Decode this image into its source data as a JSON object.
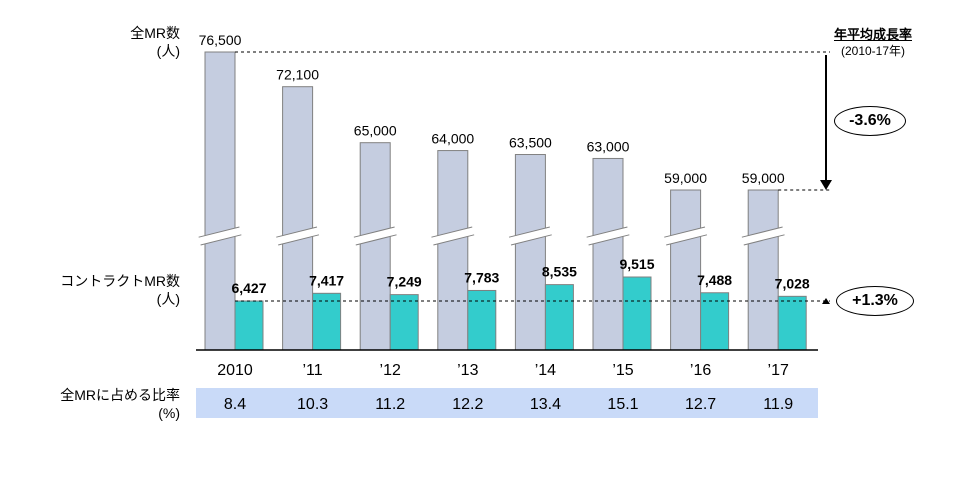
{
  "labels": {
    "total_axis_label": "全MR数\n(人)",
    "contract_axis_label": "コントラクトMR数\n(人)",
    "ratio_row_label": "全MRに占める比率\n(%)",
    "cagr_title": "年平均成長率",
    "cagr_period": "(2010-17年)",
    "cagr_total": "-3.6%",
    "cagr_contract": "+1.3%"
  },
  "chart_data": {
    "type": "bar",
    "title": "",
    "xlabel": "",
    "ylabel": "",
    "categories": [
      "2010",
      "’11",
      "’12",
      "’13",
      "’14",
      "’15",
      "’16",
      "’17"
    ],
    "axis_break": true,
    "series": [
      {
        "name": "全MR数",
        "color": "#c5cde0",
        "values": [
          76500,
          72100,
          65000,
          64000,
          63500,
          63000,
          59000,
          59000
        ],
        "value_labels": [
          "76,500",
          "72,100",
          "65,000",
          "64,000",
          "63,500",
          "63,000",
          "59,000",
          "59,000"
        ]
      },
      {
        "name": "コントラクトMR数",
        "color": "#33cccc",
        "values": [
          6427,
          7417,
          7249,
          7783,
          8535,
          9515,
          7488,
          7028
        ],
        "value_labels": [
          "6,427",
          "7,417",
          "7,249",
          "7,783",
          "8,535",
          "9,515",
          "7,488",
          "7,028"
        ]
      }
    ],
    "ratio_row": {
      "name": "全MRに占める比率",
      "unit": "%",
      "values": [
        "8.4",
        "10.3",
        "11.2",
        "12.2",
        "13.4",
        "15.1",
        "12.7",
        "11.9"
      ],
      "background": "#c9daf8"
    },
    "annotations": [
      {
        "text": "-3.6%",
        "type": "cagr",
        "series": "全MR数"
      },
      {
        "text": "+1.3%",
        "type": "cagr",
        "series": "コントラクトMR数"
      }
    ]
  }
}
